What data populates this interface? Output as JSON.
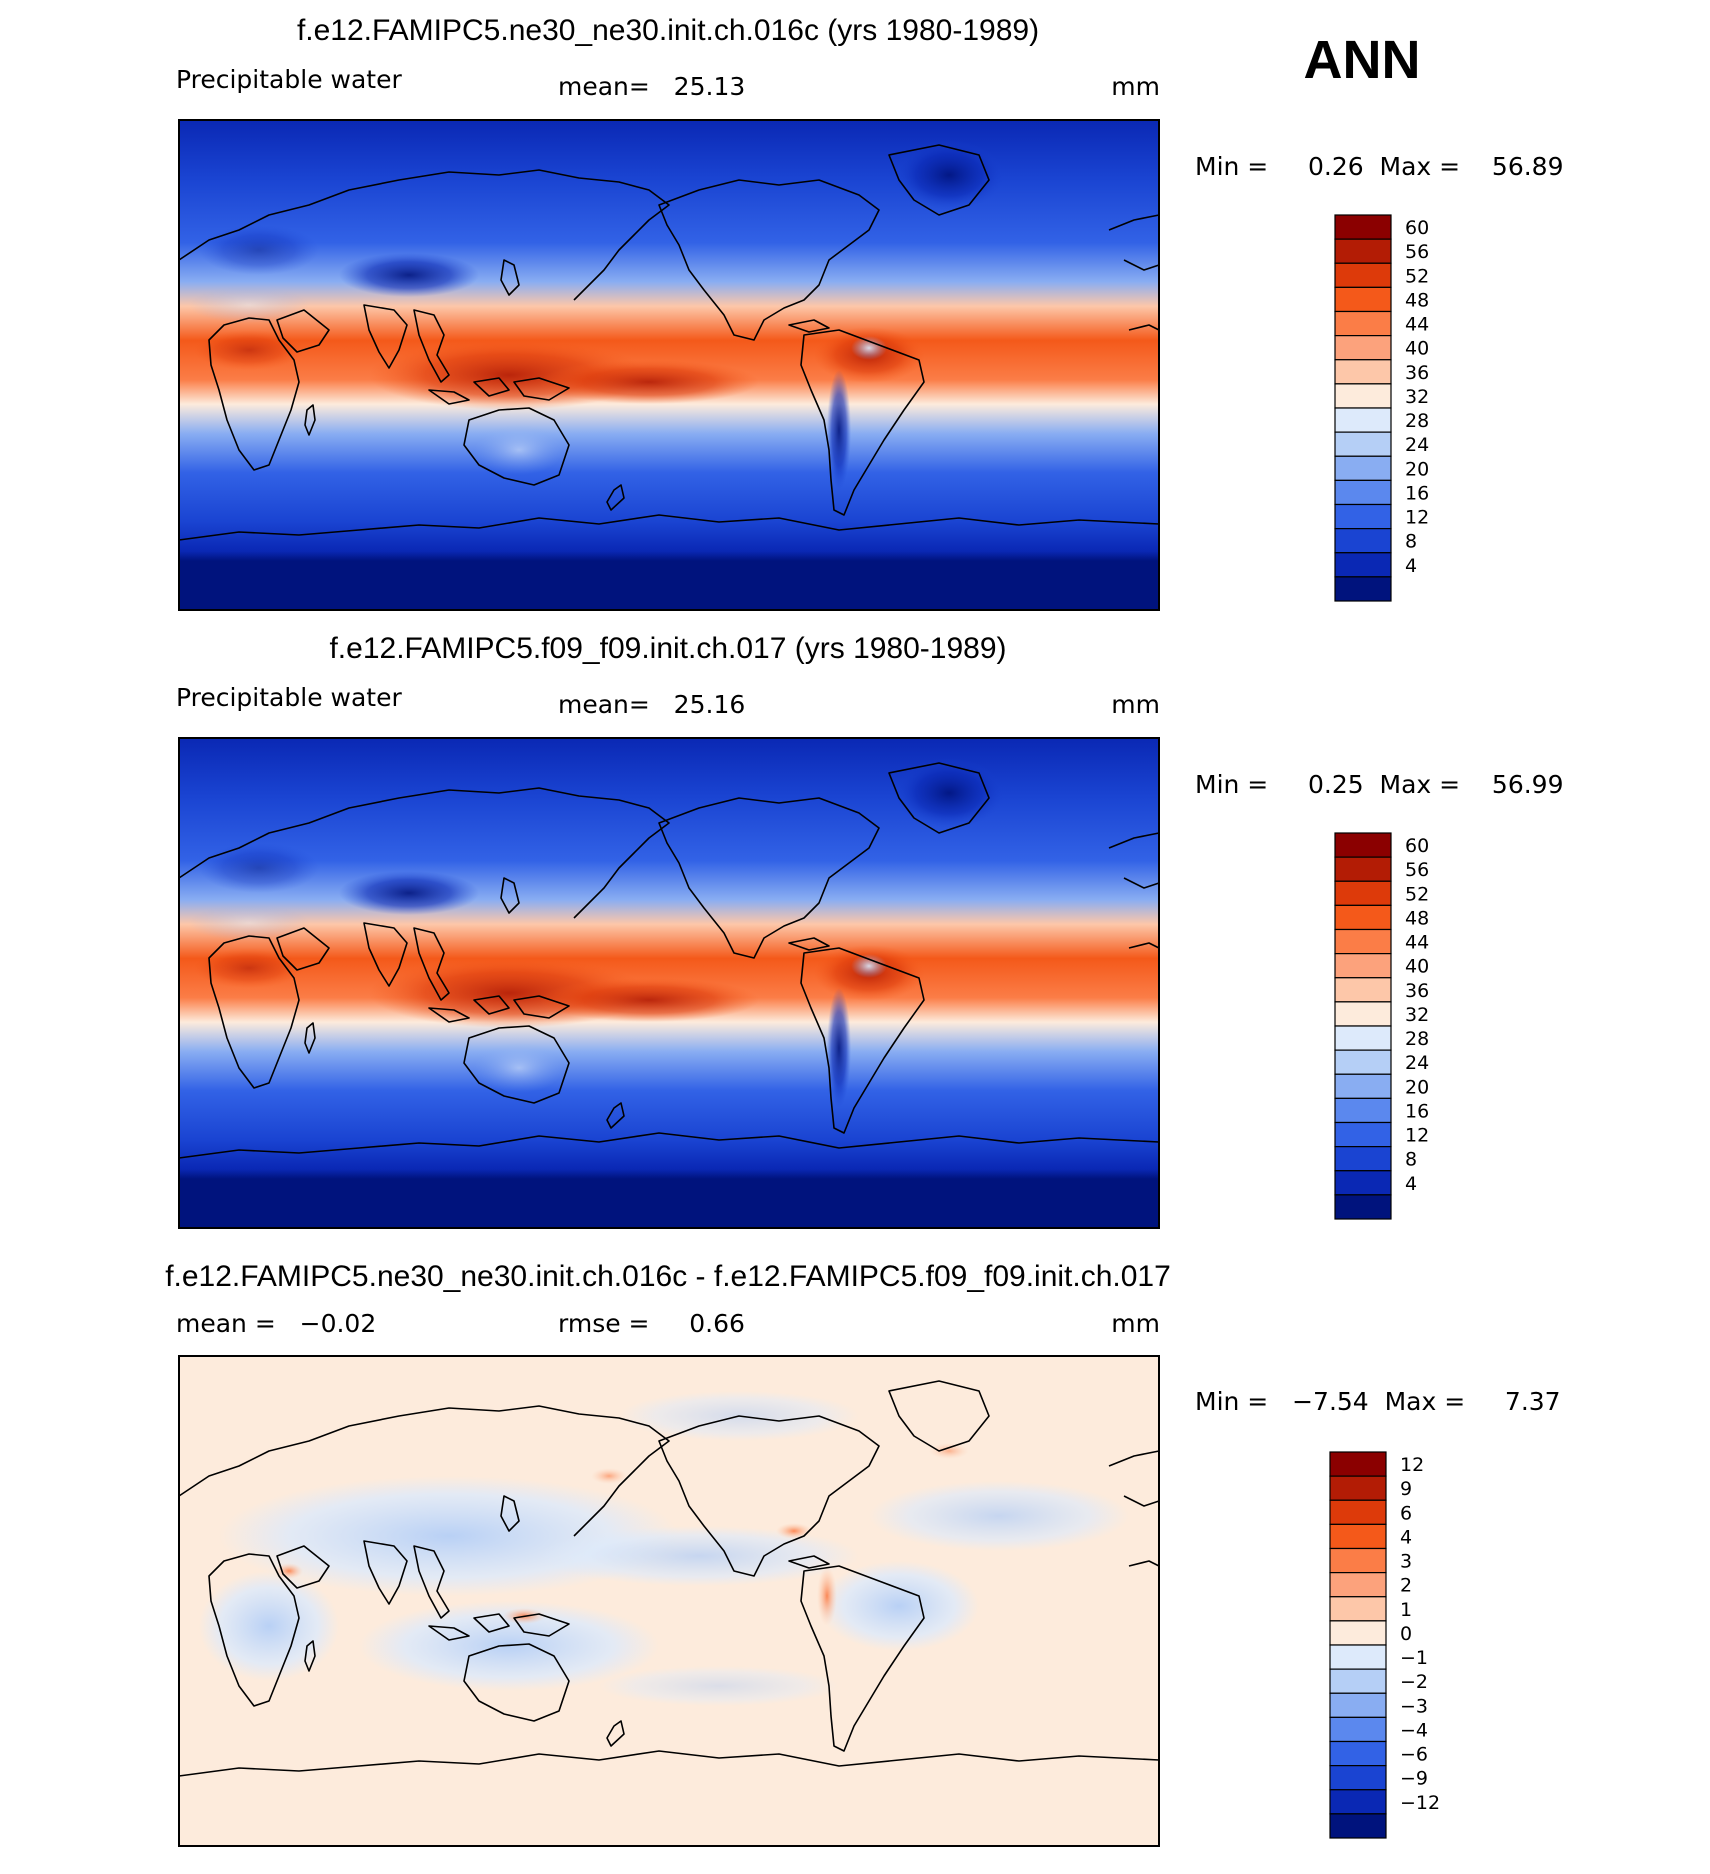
{
  "season": "ANN",
  "panels": [
    {
      "id": "top",
      "title": "f.e12.FAMIPC5.ne30_ne30.init.ch.016c (yrs 1980-1989)",
      "variable": "Precipitable water",
      "stat_text": "mean=   25.13",
      "rmse_text": "",
      "units": "mm",
      "minmax_text": "Min =     0.26  Max =    56.89",
      "colorbar": {
        "labels": [
          "60",
          "56",
          "52",
          "48",
          "44",
          "40",
          "36",
          "32",
          "28",
          "24",
          "20",
          "16",
          "12",
          "8",
          "4"
        ],
        "colors": [
          "#8b0000",
          "#b31c05",
          "#dd3a0a",
          "#f4591a",
          "#fb7d47",
          "#fca27c",
          "#fdc7a9",
          "#fdebdc",
          "#ddeafb",
          "#b5cff6",
          "#89adf2",
          "#5b88ee",
          "#3262e6",
          "#1a44d2",
          "#0a28b4",
          "#00137d"
        ]
      }
    },
    {
      "id": "middle",
      "title": "f.e12.FAMIPC5.f09_f09.init.ch.017 (yrs 1980-1989)",
      "variable": "Precipitable water",
      "stat_text": "mean=   25.16",
      "rmse_text": "",
      "units": "mm",
      "minmax_text": "Min =     0.25  Max =    56.99",
      "colorbar": {
        "labels": [
          "60",
          "56",
          "52",
          "48",
          "44",
          "40",
          "36",
          "32",
          "28",
          "24",
          "20",
          "16",
          "12",
          "8",
          "4"
        ],
        "colors": [
          "#8b0000",
          "#b31c05",
          "#dd3a0a",
          "#f4591a",
          "#fb7d47",
          "#fca27c",
          "#fdc7a9",
          "#fdebdc",
          "#ddeafb",
          "#b5cff6",
          "#89adf2",
          "#5b88ee",
          "#3262e6",
          "#1a44d2",
          "#0a28b4",
          "#00137d"
        ]
      }
    },
    {
      "id": "bottom",
      "title": "f.e12.FAMIPC5.ne30_ne30.init.ch.016c - f.e12.FAMIPC5.f09_f09.init.ch.017",
      "variable": "",
      "stat_text": "mean =   −0.02",
      "rmse_text": "rmse =     0.66",
      "units": "mm",
      "minmax_text": "Min =   −7.54  Max =     7.37",
      "colorbar": {
        "labels": [
          "12",
          "9",
          "6",
          "4",
          "3",
          "2",
          "1",
          "0",
          "−1",
          "−2",
          "−3",
          "−4",
          "−6",
          "−9",
          "−12"
        ],
        "colors": [
          "#8b0000",
          "#b31c05",
          "#dd3a0a",
          "#f4591a",
          "#fb7d47",
          "#fca27c",
          "#fdc7a9",
          "#fdebdc",
          "#ddeafb",
          "#b5cff6",
          "#89adf2",
          "#5b88ee",
          "#3262e6",
          "#1a44d2",
          "#0a28b4",
          "#00137d"
        ]
      }
    }
  ]
}
